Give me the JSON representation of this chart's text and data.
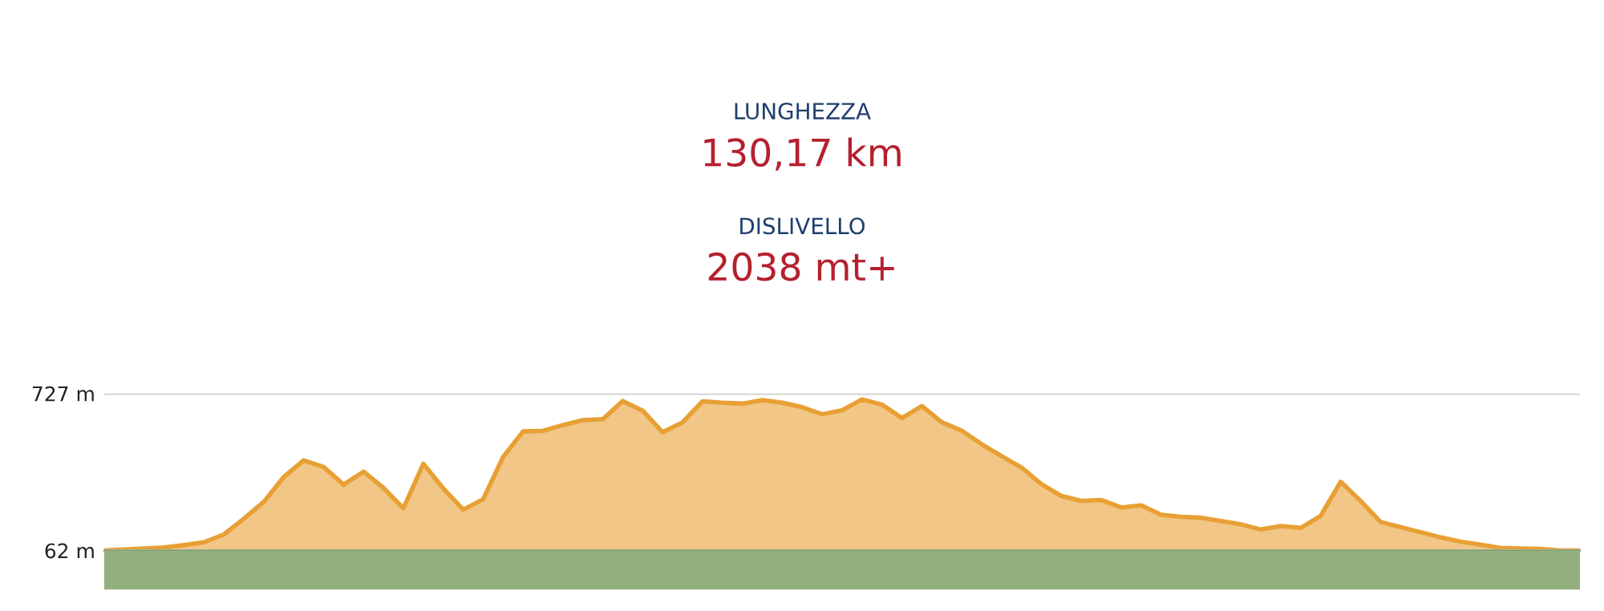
{
  "chart_data": {
    "type": "area",
    "title": "LUNGHEZZA",
    "subtitle": "130,17 km",
    "annotations": [
      "DISLIVELLO",
      "2038 mt+"
    ],
    "categories": [
      null,
      null,
      null,
      null,
      null,
      null,
      null,
      null,
      null,
      null,
      null,
      null,
      null,
      null,
      null,
      null,
      null,
      null,
      null,
      null,
      null,
      null,
      null,
      null,
      null,
      null,
      null,
      null,
      null,
      null,
      null,
      null,
      null,
      null,
      null,
      null,
      null,
      null,
      null,
      null,
      null,
      null,
      null,
      null,
      null,
      null,
      null,
      null,
      null,
      null,
      null,
      null,
      null,
      null,
      null,
      null,
      null,
      null,
      null,
      null,
      null,
      null,
      null,
      null,
      null,
      null,
      null,
      null,
      null,
      null,
      null,
      null,
      null,
      null,
      null
    ],
    "series": [
      {
        "color": "#e8a035",
        "values": [
          62,
          66,
          71,
          75,
          85,
          97,
          130,
          197,
          268,
          373,
          444,
          416,
          341,
          396,
          327,
          241,
          429,
          325,
          235,
          279,
          458,
          566,
          569,
          593,
          614,
          618,
          695,
          654,
          563,
          605,
          694,
          688,
          684,
          699,
          688,
          669,
          639,
          656,
          702,
          680,
          623,
          674,
          605,
          570,
          512,
          462,
          413,
          343,
          293,
          272,
          276,
          244,
          253,
          213,
          205,
          201,
          187,
          173,
          151,
          166,
          158,
          209,
          353,
          272,
          183,
          161,
          140,
          118,
          100,
          87,
          73,
          71,
          69,
          62,
          62
        ]
      }
    ],
    "ylim": [
      62,
      727
    ],
    "yticks": [
      {
        "value": 62,
        "label": "62 m"
      },
      {
        "value": 727,
        "label": "727 m"
      }
    ],
    "grid": "y",
    "legend": false
  }
}
